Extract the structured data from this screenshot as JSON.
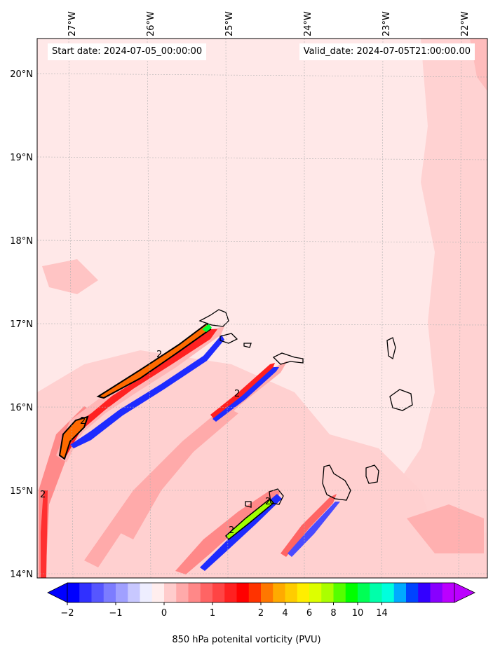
{
  "header": {
    "start_date": "Start date: 2024-07-05_00:00:00",
    "valid_date": "Valid_date: 2024-07-05T21:00:00.00"
  },
  "lon_labels": [
    "27°W",
    "26°W",
    "25°W",
    "24°W",
    "23°W",
    "22°W"
  ],
  "lat_labels": [
    "20°N",
    "19°N",
    "18°N",
    "17°N",
    "16°N",
    "15°N",
    "14°N"
  ],
  "colorbar": {
    "label": "850 hPa potenital vorticity (PVU)",
    "tick_labels": [
      "−2",
      "−1",
      "0",
      "1",
      "2",
      "4",
      "6",
      "8",
      "10",
      "14"
    ],
    "colors": [
      "#0000ff",
      "#3030ff",
      "#5656ff",
      "#7c7cff",
      "#a0a0ff",
      "#c8c8ff",
      "#eeeeff",
      "#ffeeee",
      "#ffcccc",
      "#ffaaaa",
      "#ff8888",
      "#ff6464",
      "#ff4444",
      "#ff2020",
      "#ff0000",
      "#ff3300",
      "#ff7700",
      "#ffaa00",
      "#ffcc00",
      "#ffee00",
      "#ddff00",
      "#aaff00",
      "#55ff00",
      "#00ff00",
      "#00ff55",
      "#00ffaa",
      "#00ffdd",
      "#00aaff",
      "#0044ff",
      "#3300ff",
      "#8800ff",
      "#bb00ff"
    ],
    "extend": "both"
  },
  "contour_labels": [
    "2",
    "2",
    "2",
    "2",
    "2",
    "2"
  ],
  "colors": {
    "background_field": "#ffe8e8",
    "light_pink": "#ffcccc",
    "red": "#ff2020",
    "blue": "#1e2bff",
    "orange": "#ff6a00",
    "coast": "#000000"
  }
}
